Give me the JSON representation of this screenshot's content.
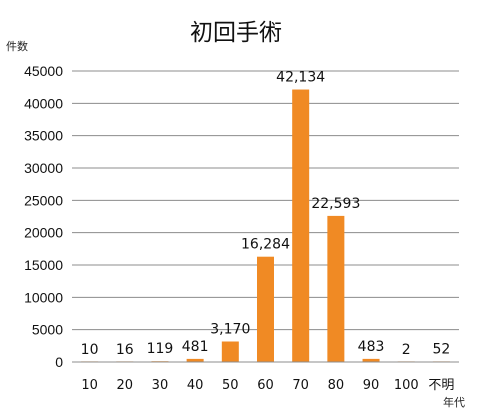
{
  "chart_data": {
    "type": "bar",
    "title": "初回手術",
    "ylabel": "件数",
    "xlabel": "年代",
    "categories": [
      "10",
      "20",
      "30",
      "40",
      "50",
      "60",
      "70",
      "80",
      "90",
      "100",
      "不明"
    ],
    "values": [
      10,
      16,
      119,
      481,
      3170,
      16284,
      42134,
      22593,
      483,
      2,
      52
    ],
    "data_labels": [
      "10",
      "16",
      "119",
      "481",
      "3,170",
      "16,284",
      "42,134",
      "22,593",
      "483",
      "2",
      "52"
    ],
    "ylim": [
      0,
      45000
    ],
    "yticks": [
      0,
      5000,
      10000,
      15000,
      20000,
      25000,
      30000,
      35000,
      40000,
      45000
    ],
    "ytick_labels": [
      "0",
      "5000",
      "10000",
      "15000",
      "20000",
      "25000",
      "30000",
      "35000",
      "40000",
      "45000"
    ],
    "grid": true,
    "legend": "none",
    "colors": {
      "bar": "#F08A24",
      "grid": "#8C8C8C",
      "axis": "#8C8C8C"
    }
  }
}
